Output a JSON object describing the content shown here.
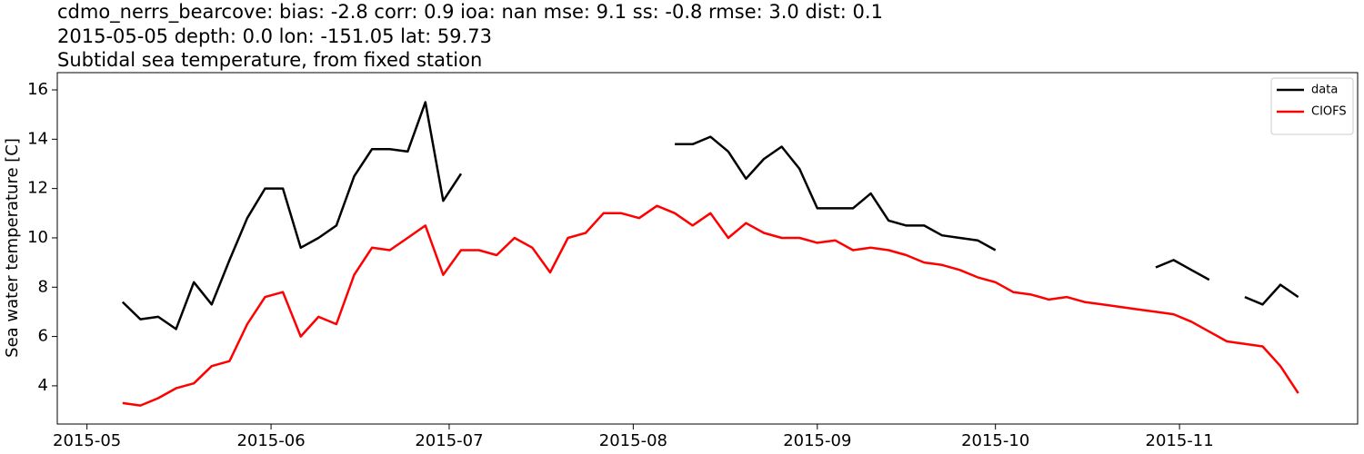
{
  "chart_data": {
    "type": "line",
    "title": "cdmo_nerrs_bearcove: bias: -2.8  corr: 0.9  ioa: nan  mse: 9.1  ss: -0.8  rmse: 3.0  dist: 0.1",
    "subtitle": "2015-05-05 depth: 0.0 lon: -151.05 lat: 59.73",
    "subtitle2": "Subtidal sea temperature, from fixed station",
    "ylabel": "Sea water temperature [C]",
    "x": [
      "2015-05-07",
      "2015-05-10",
      "2015-05-13",
      "2015-05-16",
      "2015-05-19",
      "2015-05-22",
      "2015-05-25",
      "2015-05-28",
      "2015-05-31",
      "2015-06-03",
      "2015-06-06",
      "2015-06-09",
      "2015-06-12",
      "2015-06-15",
      "2015-06-18",
      "2015-06-21",
      "2015-06-24",
      "2015-06-27",
      "2015-06-30",
      "2015-07-03",
      "2015-07-06",
      "2015-07-09",
      "2015-07-12",
      "2015-07-15",
      "2015-07-18",
      "2015-07-21",
      "2015-07-24",
      "2015-07-27",
      "2015-07-30",
      "2015-08-02",
      "2015-08-05",
      "2015-08-08",
      "2015-08-11",
      "2015-08-14",
      "2015-08-17",
      "2015-08-20",
      "2015-08-23",
      "2015-08-26",
      "2015-08-29",
      "2015-09-01",
      "2015-09-04",
      "2015-09-07",
      "2015-09-10",
      "2015-09-13",
      "2015-09-16",
      "2015-09-19",
      "2015-09-22",
      "2015-09-25",
      "2015-09-28",
      "2015-10-01",
      "2015-10-04",
      "2015-10-07",
      "2015-10-10",
      "2015-10-13",
      "2015-10-16",
      "2015-10-19",
      "2015-10-22",
      "2015-10-25",
      "2015-10-28",
      "2015-10-31",
      "2015-11-03",
      "2015-11-06",
      "2015-11-09",
      "2015-11-12",
      "2015-11-15",
      "2015-11-18",
      "2015-11-21"
    ],
    "series": [
      {
        "name": "data",
        "color": "#000000",
        "values": [
          7.4,
          6.7,
          6.8,
          6.3,
          8.2,
          7.3,
          9.1,
          10.8,
          12.0,
          12.0,
          9.6,
          10.0,
          10.5,
          12.5,
          13.6,
          13.6,
          13.5,
          15.5,
          11.5,
          12.6,
          null,
          null,
          null,
          null,
          null,
          null,
          null,
          null,
          null,
          null,
          null,
          13.8,
          13.8,
          14.1,
          13.5,
          12.4,
          13.2,
          13.7,
          12.8,
          11.2,
          11.2,
          11.2,
          11.8,
          10.7,
          10.5,
          10.5,
          10.1,
          10.0,
          9.9,
          9.5,
          null,
          null,
          null,
          null,
          null,
          null,
          null,
          null,
          8.8,
          9.1,
          8.7,
          8.3,
          null,
          7.6,
          7.3,
          8.1,
          7.6
        ]
      },
      {
        "name": "CIOFS",
        "color": "#ff0000",
        "values": [
          3.3,
          3.2,
          3.5,
          3.9,
          4.1,
          4.8,
          5.0,
          6.5,
          7.6,
          7.8,
          6.0,
          6.8,
          6.5,
          8.5,
          9.6,
          9.5,
          10.0,
          10.5,
          8.5,
          9.5,
          9.5,
          9.3,
          10.0,
          9.6,
          8.6,
          10.0,
          10.2,
          11.0,
          11.0,
          10.8,
          11.3,
          11.0,
          10.5,
          11.0,
          10.0,
          10.6,
          10.2,
          10.0,
          10.0,
          9.8,
          9.9,
          9.5,
          9.6,
          9.5,
          9.3,
          9.0,
          8.9,
          8.7,
          8.4,
          8.2,
          7.8,
          7.7,
          7.5,
          7.6,
          7.4,
          7.3,
          7.2,
          7.1,
          7.0,
          6.9,
          6.6,
          6.2,
          5.8,
          5.7,
          5.6,
          4.8,
          3.7
        ]
      }
    ],
    "xlim": [
      "2015-04-26",
      "2015-12-01"
    ],
    "xticks": [
      "2015-05",
      "2015-06",
      "2015-07",
      "2015-08",
      "2015-09",
      "2015-10",
      "2015-11"
    ],
    "ylim": [
      2.45,
      16.7
    ],
    "yticks": [
      4,
      6,
      8,
      10,
      12,
      14,
      16
    ],
    "legend": "upper right"
  }
}
